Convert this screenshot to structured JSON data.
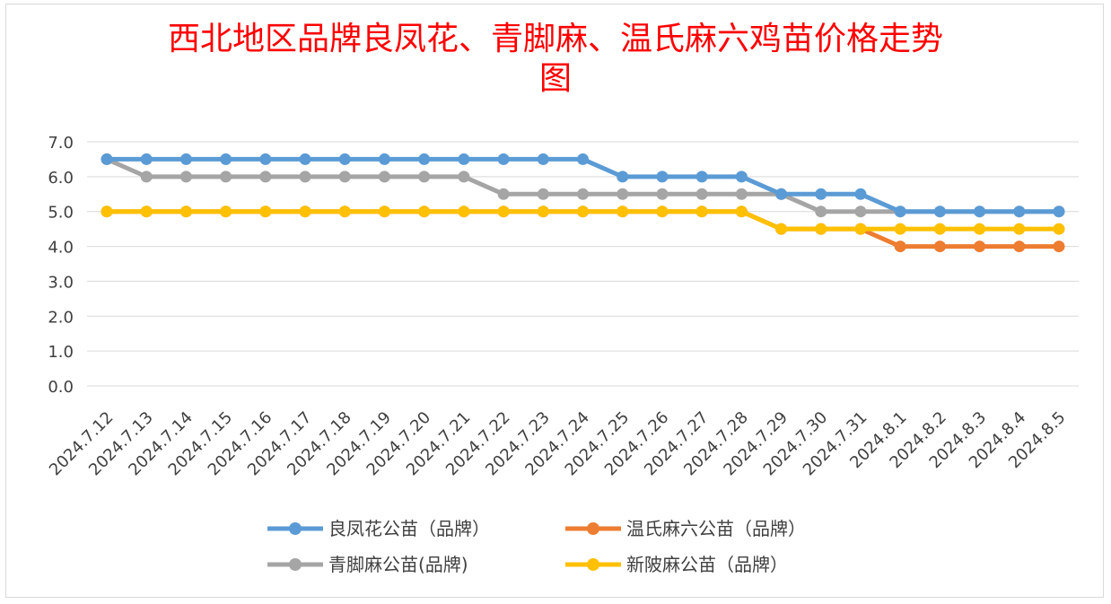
{
  "chart_data": {
    "type": "line",
    "title_line1": "西北地区品牌良凤花、青脚麻、温氏麻六鸡苗价格走势",
    "title_line2": "图",
    "categories": [
      "2024.7.12",
      "2024.7.13",
      "2024.7.14",
      "2024.7.15",
      "2024.7.16",
      "2024.7.17",
      "2024.7.18",
      "2024.7.19",
      "2024.7.20",
      "2024.7.21",
      "2024.7.22",
      "2024.7.23",
      "2024.7.24",
      "2024.7.25",
      "2024.7.26",
      "2024.7.27",
      "2024.7.28",
      "2024.7.29",
      "2024.7.30",
      "2024.7.31",
      "2024.8.1",
      "2024.8.2",
      "2024.8.3",
      "2024.8.4",
      "2024.8.5"
    ],
    "ylim": [
      0,
      7
    ],
    "yticks": [
      "0.0",
      "1.0",
      "2.0",
      "3.0",
      "4.0",
      "5.0",
      "6.0",
      "7.0"
    ],
    "grid": true,
    "legend_position": "bottom",
    "series": [
      {
        "name": "良凤花公苗（品牌）",
        "color": "#5b9bd5",
        "values": [
          6.5,
          6.5,
          6.5,
          6.5,
          6.5,
          6.5,
          6.5,
          6.5,
          6.5,
          6.5,
          6.5,
          6.5,
          6.5,
          6.0,
          6.0,
          6.0,
          6.0,
          5.5,
          5.5,
          5.5,
          5.0,
          5.0,
          5.0,
          5.0,
          5.0
        ]
      },
      {
        "name": "温氏麻六公苗（品牌）",
        "color": "#ed7d31",
        "values": [
          5.0,
          5.0,
          5.0,
          5.0,
          5.0,
          5.0,
          5.0,
          5.0,
          5.0,
          5.0,
          5.0,
          5.0,
          5.0,
          5.0,
          5.0,
          5.0,
          5.0,
          4.5,
          4.5,
          4.5,
          4.0,
          4.0,
          4.0,
          4.0,
          4.0
        ]
      },
      {
        "name": "青脚麻公苗(品牌)",
        "color": "#a5a5a5",
        "values": [
          6.5,
          6.0,
          6.0,
          6.0,
          6.0,
          6.0,
          6.0,
          6.0,
          6.0,
          6.0,
          5.5,
          5.5,
          5.5,
          5.5,
          5.5,
          5.5,
          5.5,
          5.5,
          5.0,
          5.0,
          5.0,
          5.0,
          5.0,
          5.0,
          5.0
        ]
      },
      {
        "name": "新陂麻公苗（品牌）",
        "color": "#ffc000",
        "values": [
          5.0,
          5.0,
          5.0,
          5.0,
          5.0,
          5.0,
          5.0,
          5.0,
          5.0,
          5.0,
          5.0,
          5.0,
          5.0,
          5.0,
          5.0,
          5.0,
          5.0,
          4.5,
          4.5,
          4.5,
          4.5,
          4.5,
          4.5,
          4.5,
          4.5
        ]
      }
    ]
  }
}
